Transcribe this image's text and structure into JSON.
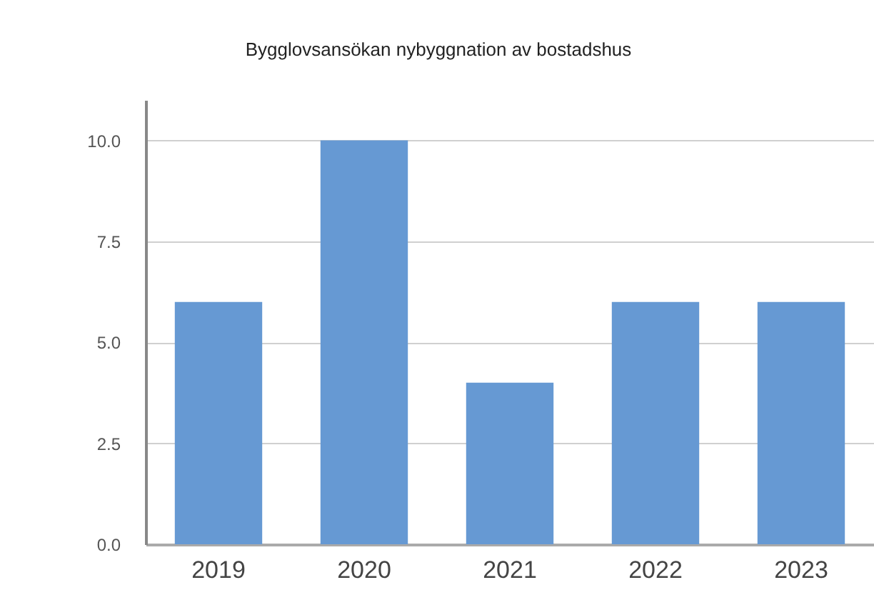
{
  "chart_data": {
    "type": "bar",
    "title": "Bygglovsansökan nybyggnation av bostadshus",
    "categories": [
      "2019",
      "2020",
      "2021",
      "2022",
      "2023"
    ],
    "values": [
      6,
      10,
      4,
      6,
      6
    ],
    "color": "#6699d3",
    "ylim": [
      0,
      11
    ],
    "yticks": [
      {
        "value": 0,
        "label": "0.0"
      },
      {
        "value": 2.5,
        "label": "2.5"
      },
      {
        "value": 5,
        "label": "5.0"
      },
      {
        "value": 7.5,
        "label": "7.5"
      },
      {
        "value": 10,
        "label": "10.0"
      }
    ],
    "grid": "y"
  }
}
